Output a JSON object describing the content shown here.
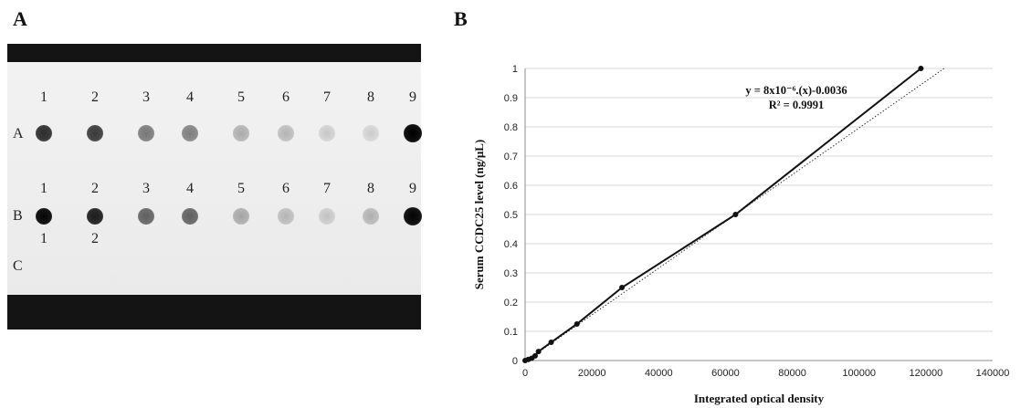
{
  "panels": {
    "a_label": "A",
    "b_label": "B"
  },
  "blot": {
    "column_numbers": [
      "1",
      "2",
      "3",
      "4",
      "5",
      "6",
      "7",
      "8",
      "9"
    ],
    "row_labels": [
      "A",
      "B",
      "C"
    ],
    "row_b_sub_labels": [
      "1",
      "2"
    ],
    "spot_intensity": {
      "A": [
        0.78,
        0.72,
        0.45,
        0.42,
        0.22,
        0.18,
        0.1,
        0.08,
        0.98
      ],
      "B": [
        0.95,
        0.85,
        0.55,
        0.55,
        0.25,
        0.18,
        0.12,
        0.2,
        0.96
      ]
    }
  },
  "chart_data": {
    "type": "scatter",
    "title": "",
    "xlabel": "Integrated optical density",
    "ylabel": "Serum CCDC25 level (ng/μL)",
    "xlim": [
      0,
      140000
    ],
    "ylim": [
      0,
      1
    ],
    "x_ticks": [
      "0",
      "20000",
      "40000",
      "60000",
      "80000",
      "100000",
      "120000",
      "140000"
    ],
    "y_ticks": [
      "0",
      "0.1",
      "0.2",
      "0.3",
      "0.4",
      "0.5",
      "0.6",
      "0.7",
      "0.8",
      "0.9",
      "1"
    ],
    "grid": true,
    "series": [
      {
        "x": [
          0,
          1000,
          2000,
          3000,
          4000,
          7800,
          15500,
          29000,
          63000,
          118500
        ],
        "y": [
          0,
          0.004,
          0.008,
          0.016,
          0.031,
          0.0625,
          0.125,
          0.25,
          0.5,
          1.0
        ]
      }
    ],
    "trendline": {
      "style": "dotted",
      "slope": 8e-06,
      "intercept": -0.0036
    },
    "annotations": {
      "equation": "y = 8x10⁻⁶.(x)-0.0036",
      "r2": "R² = 0.9991"
    }
  }
}
